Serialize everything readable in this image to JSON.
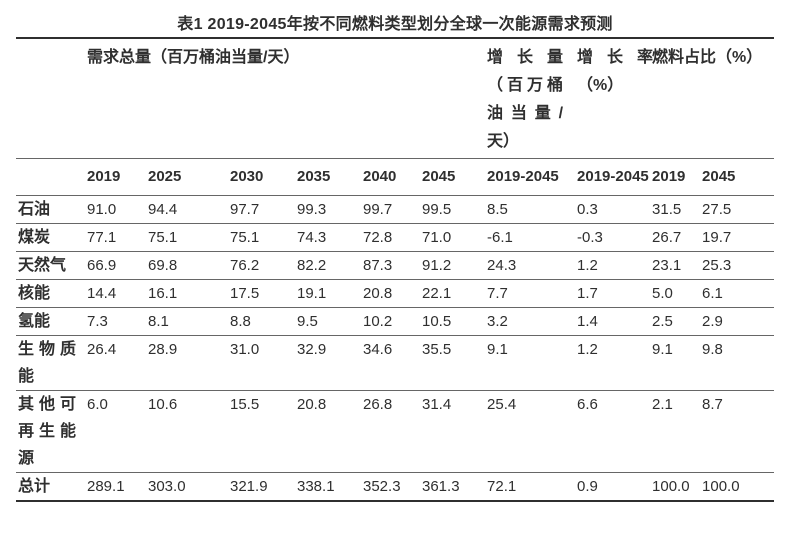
{
  "title": "表1 2019-2045年按不同燃料类型划分全球一次能源需求预测",
  "table": {
    "group_headers": {
      "demand_total": "需求总量（百万桶油当量/天）",
      "growth_amount": "增长量（百万桶油当量/天）",
      "growth_rate": "增长率（%）",
      "fuel_share": "燃料占比（%）"
    },
    "year_headers": [
      "2019",
      "2025",
      "2030",
      "2035",
      "2040",
      "2045",
      "2019-2045",
      "2019-2045",
      "2019",
      "2045"
    ],
    "rows": [
      {
        "label": "石油",
        "values": [
          "91.0",
          "94.4",
          "97.7",
          "99.3",
          "99.7",
          "99.5",
          "8.5",
          "0.3",
          "31.5",
          "27.5"
        ]
      },
      {
        "label": "煤炭",
        "values": [
          "77.1",
          "75.1",
          "75.1",
          "74.3",
          "72.8",
          "71.0",
          "-6.1",
          "-0.3",
          "26.7",
          "19.7"
        ]
      },
      {
        "label": "天然气",
        "values": [
          "66.9",
          "69.8",
          "76.2",
          "82.2",
          "87.3",
          "91.2",
          "24.3",
          "1.2",
          "23.1",
          "25.3"
        ]
      },
      {
        "label": "核能",
        "values": [
          "14.4",
          "16.1",
          "17.5",
          "19.1",
          "20.8",
          "22.1",
          "7.7",
          "1.7",
          "5.0",
          "6.1"
        ]
      },
      {
        "label": "氢能",
        "values": [
          "7.3",
          "8.1",
          "8.8",
          "9.5",
          "10.2",
          "10.5",
          "3.2",
          "1.4",
          "2.5",
          "2.9"
        ]
      },
      {
        "label": "生物质能",
        "values": [
          "26.4",
          "28.9",
          "31.0",
          "32.9",
          "34.6",
          "35.5",
          "9.1",
          "1.2",
          "9.1",
          "9.8"
        ]
      },
      {
        "label": "其他可再生能源",
        "values": [
          "6.0",
          "10.6",
          "15.5",
          "20.8",
          "26.8",
          "31.4",
          "25.4",
          "6.6",
          "2.1",
          "8.7"
        ]
      },
      {
        "label": "总计",
        "values": [
          "289.1",
          "303.0",
          "321.9",
          "338.1",
          "352.3",
          "361.3",
          "72.1",
          "0.9",
          "100.0",
          "100.0"
        ],
        "is_total": true
      }
    ],
    "colors": {
      "text": "#2f2f2f",
      "rule_heavy": "#2f2f2f",
      "rule_light": "#666666",
      "background": "#ffffff"
    }
  }
}
